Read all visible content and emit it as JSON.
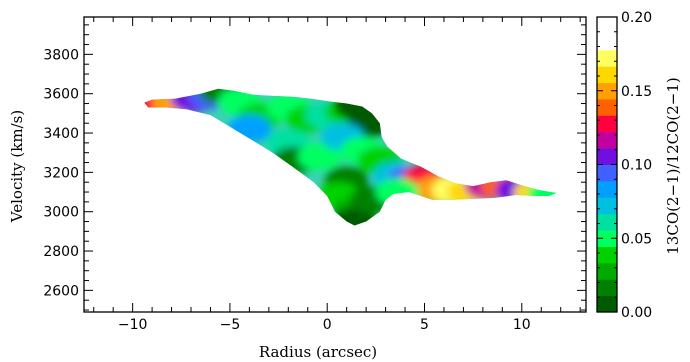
{
  "chart_data": {
    "type": "heatmap",
    "title": "",
    "xlabel": "Radius (arcsec)",
    "ylabel": "Velocity (km/s)",
    "colorbar_label": "13CO(2−1)/12CO(2−1)",
    "xlim": [
      -12.5,
      13.3
    ],
    "ylim": [
      2490,
      3990
    ],
    "x_ticks": [
      -10,
      -5,
      0,
      5,
      10
    ],
    "y_ticks": [
      2600,
      2800,
      3000,
      3200,
      3400,
      3600,
      3800
    ],
    "colorbar_range": [
      0.0,
      0.2
    ],
    "colorbar_ticks": [
      0.0,
      0.05,
      0.1,
      0.15,
      0.2
    ],
    "colorbar_tick_labels": [
      "0.00",
      "0.05",
      "0.10",
      "0.15",
      "0.20"
    ],
    "region_outline": [
      [
        -9.4,
        3555
      ],
      [
        -9.0,
        3570
      ],
      [
        -7.8,
        3575
      ],
      [
        -6.5,
        3600
      ],
      [
        -5.6,
        3625
      ],
      [
        -4.8,
        3615
      ],
      [
        -3.8,
        3595
      ],
      [
        -2.8,
        3590
      ],
      [
        -1.8,
        3585
      ],
      [
        -0.8,
        3575
      ],
      [
        0.2,
        3560
      ],
      [
        1.0,
        3550
      ],
      [
        1.8,
        3535
      ],
      [
        2.3,
        3500
      ],
      [
        2.7,
        3450
      ],
      [
        2.8,
        3380
      ],
      [
        3.1,
        3330
      ],
      [
        3.8,
        3270
      ],
      [
        4.8,
        3230
      ],
      [
        5.7,
        3180
      ],
      [
        6.6,
        3145
      ],
      [
        7.5,
        3130
      ],
      [
        8.4,
        3150
      ],
      [
        9.2,
        3160
      ],
      [
        10.0,
        3135
      ],
      [
        10.9,
        3110
      ],
      [
        11.5,
        3100
      ],
      [
        11.8,
        3095
      ],
      [
        11.4,
        3080
      ],
      [
        10.6,
        3080
      ],
      [
        9.7,
        3085
      ],
      [
        8.6,
        3070
      ],
      [
        7.5,
        3065
      ],
      [
        6.4,
        3060
      ],
      [
        5.4,
        3060
      ],
      [
        4.2,
        3100
      ],
      [
        3.4,
        3090
      ],
      [
        3.0,
        3060
      ],
      [
        2.7,
        3000
      ],
      [
        2.0,
        2950
      ],
      [
        1.4,
        2930
      ],
      [
        1.0,
        2950
      ],
      [
        0.4,
        3000
      ],
      [
        0.0,
        3080
      ],
      [
        -0.7,
        3150
      ],
      [
        -1.8,
        3230
      ],
      [
        -2.8,
        3300
      ],
      [
        -3.8,
        3360
      ],
      [
        -4.8,
        3420
      ],
      [
        -6.0,
        3490
      ],
      [
        -7.2,
        3520
      ],
      [
        -8.3,
        3530
      ],
      [
        -9.2,
        3530
      ]
    ],
    "ratio_map": [
      {
        "x": -9.0,
        "y": 3555,
        "ratio": 0.13
      },
      {
        "x": -7.9,
        "y": 3560,
        "ratio": 0.15
      },
      {
        "x": -6.9,
        "y": 3575,
        "ratio": 0.11
      },
      {
        "x": -6.0,
        "y": 3590,
        "ratio": 0.09
      },
      {
        "x": -5.5,
        "y": 3615,
        "ratio": 0.02
      },
      {
        "x": -4.5,
        "y": 3560,
        "ratio": 0.05
      },
      {
        "x": -3.5,
        "y": 3480,
        "ratio": 0.04
      },
      {
        "x": -4.0,
        "y": 3420,
        "ratio": 0.08
      },
      {
        "x": -2.0,
        "y": 3530,
        "ratio": 0.05
      },
      {
        "x": -1.0,
        "y": 3470,
        "ratio": 0.04
      },
      {
        "x": 0.0,
        "y": 3490,
        "ratio": 0.06
      },
      {
        "x": 1.0,
        "y": 3510,
        "ratio": 0.04
      },
      {
        "x": 1.5,
        "y": 3540,
        "ratio": 0.01
      },
      {
        "x": 2.2,
        "y": 3450,
        "ratio": 0.01
      },
      {
        "x": -2.0,
        "y": 3350,
        "ratio": 0.06
      },
      {
        "x": -1.7,
        "y": 3260,
        "ratio": 0.02
      },
      {
        "x": -0.4,
        "y": 3280,
        "ratio": 0.05
      },
      {
        "x": 0.8,
        "y": 3380,
        "ratio": 0.07
      },
      {
        "x": 1.8,
        "y": 3310,
        "ratio": 0.05
      },
      {
        "x": 2.7,
        "y": 3260,
        "ratio": 0.04
      },
      {
        "x": 1.0,
        "y": 3160,
        "ratio": 0.02
      },
      {
        "x": 0.6,
        "y": 3080,
        "ratio": 0.04
      },
      {
        "x": 1.4,
        "y": 3000,
        "ratio": 0.03
      },
      {
        "x": 1.4,
        "y": 2950,
        "ratio": 0.0
      },
      {
        "x": 2.3,
        "y": 3060,
        "ratio": 0.02
      },
      {
        "x": 3.5,
        "y": 3180,
        "ratio": 0.07
      },
      {
        "x": 4.2,
        "y": 3160,
        "ratio": 0.09
      },
      {
        "x": 5.0,
        "y": 3170,
        "ratio": 0.13
      },
      {
        "x": 5.6,
        "y": 3110,
        "ratio": 0.15
      },
      {
        "x": 6.5,
        "y": 3110,
        "ratio": 0.17
      },
      {
        "x": 7.3,
        "y": 3100,
        "ratio": 0.16
      },
      {
        "x": 8.2,
        "y": 3130,
        "ratio": 0.12
      },
      {
        "x": 9.0,
        "y": 3130,
        "ratio": 0.14
      },
      {
        "x": 9.8,
        "y": 3110,
        "ratio": 0.1
      },
      {
        "x": 10.7,
        "y": 3095,
        "ratio": 0.16
      },
      {
        "x": 11.4,
        "y": 3090,
        "ratio": 0.05
      },
      {
        "x": 3.6,
        "y": 3100,
        "ratio": 0.05
      }
    ],
    "grid": false,
    "legend": "none",
    "colors": {
      "colormap": [
        "#005a00",
        "#008000",
        "#00aa00",
        "#00d200",
        "#00ff60",
        "#00e0a0",
        "#00c0e0",
        "#00a0ff",
        "#4060ff",
        "#7010e0",
        "#c000a0",
        "#ff0040",
        "#ff6000",
        "#ffa000",
        "#ffd800",
        "#ffff60",
        "#ffffff",
        "#ffffff"
      ]
    }
  }
}
